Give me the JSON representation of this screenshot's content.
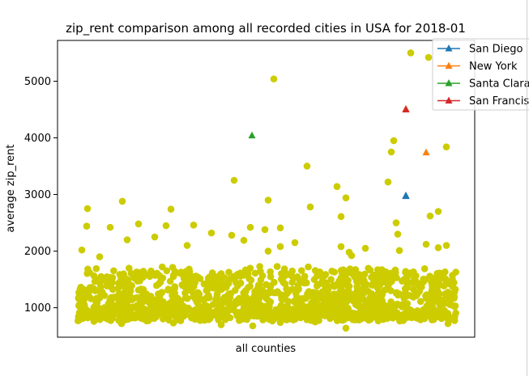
{
  "chart_data": {
    "type": "scatter",
    "title": "zip_rent comparison among all recorded cities in USA for 2018-01",
    "xlabel": "all counties",
    "ylabel": "average zip_rent",
    "ylim": [
      480,
      5720
    ],
    "yticks": [
      1000,
      2000,
      3000,
      4000,
      5000
    ],
    "xticks_visible": false,
    "grid": false,
    "legend_position": "top-right",
    "background_color": "#cccc00",
    "highlights": [
      {
        "name": "San Diego",
        "color": "#1f77b4",
        "marker": "triangle",
        "points": [
          {
            "x": 430,
            "y": 2970
          },
          {
            "x": 430,
            "y": 2980
          }
        ]
      },
      {
        "name": "New York",
        "color": "#ff7f0e",
        "marker": "triangle",
        "points": [
          {
            "x": 430,
            "y": 4510
          },
          {
            "x": 455,
            "y": 3740
          }
        ]
      },
      {
        "name": "Santa Clara",
        "color": "#2ca02c",
        "marker": "triangle",
        "points": [
          {
            "x": 240,
            "y": 4040
          }
        ]
      },
      {
        "name": "San Francisco",
        "color": "#d62728",
        "marker": "triangle",
        "points": [
          {
            "x": 430,
            "y": 4500
          }
        ]
      }
    ],
    "background_series": {
      "color": "#cccc00",
      "outliers": [
        {
          "x": 436,
          "y": 5500
        },
        {
          "x": 267,
          "y": 5040
        },
        {
          "x": 458,
          "y": 5420
        },
        {
          "x": 415,
          "y": 3950
        },
        {
          "x": 412,
          "y": 3750
        },
        {
          "x": 480,
          "y": 3840
        },
        {
          "x": 218,
          "y": 3250
        },
        {
          "x": 308,
          "y": 3500
        },
        {
          "x": 408,
          "y": 3220
        },
        {
          "x": 345,
          "y": 3140
        },
        {
          "x": 260,
          "y": 2900
        },
        {
          "x": 356,
          "y": 2940
        },
        {
          "x": 37,
          "y": 2750
        },
        {
          "x": 80,
          "y": 2880
        },
        {
          "x": 140,
          "y": 2740
        },
        {
          "x": 312,
          "y": 2780
        },
        {
          "x": 470,
          "y": 2700
        },
        {
          "x": 460,
          "y": 2620
        },
        {
          "x": 350,
          "y": 2610
        },
        {
          "x": 418,
          "y": 2500
        },
        {
          "x": 134,
          "y": 2450
        },
        {
          "x": 36,
          "y": 2440
        },
        {
          "x": 238,
          "y": 2420
        },
        {
          "x": 168,
          "y": 2460
        },
        {
          "x": 65,
          "y": 2420
        },
        {
          "x": 100,
          "y": 2480
        },
        {
          "x": 256,
          "y": 2380
        },
        {
          "x": 275,
          "y": 2410
        },
        {
          "x": 420,
          "y": 2300
        },
        {
          "x": 190,
          "y": 2320
        },
        {
          "x": 120,
          "y": 2250
        },
        {
          "x": 455,
          "y": 2120
        },
        {
          "x": 480,
          "y": 2100
        },
        {
          "x": 275,
          "y": 2080
        },
        {
          "x": 350,
          "y": 2080
        },
        {
          "x": 293,
          "y": 2150
        },
        {
          "x": 30,
          "y": 2020
        },
        {
          "x": 360,
          "y": 1980
        },
        {
          "x": 215,
          "y": 2280
        },
        {
          "x": 422,
          "y": 2010
        },
        {
          "x": 260,
          "y": 2000
        },
        {
          "x": 470,
          "y": 2060
        },
        {
          "x": 363,
          "y": 1920
        },
        {
          "x": 52,
          "y": 1900
        },
        {
          "x": 230,
          "y": 2190
        },
        {
          "x": 86,
          "y": 2200
        },
        {
          "x": 380,
          "y": 2050
        },
        {
          "x": 160,
          "y": 2100
        },
        {
          "x": 79,
          "y": 720
        },
        {
          "x": 202,
          "y": 700
        },
        {
          "x": 356,
          "y": 640
        },
        {
          "x": 482,
          "y": 720
        },
        {
          "x": 241,
          "y": 680
        },
        {
          "x": 143,
          "y": 730
        },
        {
          "x": 45,
          "y": 760
        },
        {
          "x": 275,
          "y": 740
        },
        {
          "x": 318,
          "y": 750
        }
      ],
      "cluster_count": 1400,
      "cluster_ylim": [
        760,
        1950
      ],
      "cluster_x_range": [
        25,
        492
      ]
    },
    "x_range": [
      0,
      515
    ]
  }
}
